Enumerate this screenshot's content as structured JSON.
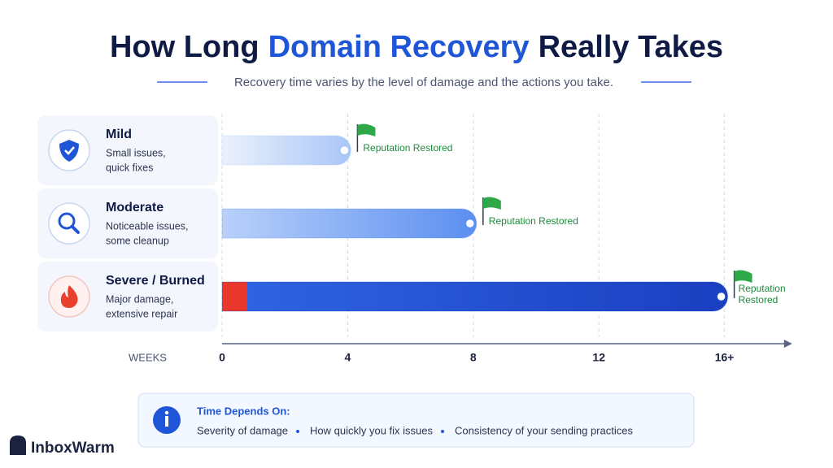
{
  "chart_data": {
    "type": "bar",
    "orientation": "horizontal",
    "title_parts": [
      "How Long",
      "Domain Recovery",
      "Really Takes"
    ],
    "subtitle": "Recovery time varies by the level of damage and the actions you take.",
    "categories": [
      "Mild",
      "Moderate",
      "Severe / Burned"
    ],
    "descriptions": [
      [
        "Small issues,",
        "quick fixes"
      ],
      [
        "Noticeable issues,",
        "some cleanup"
      ],
      [
        "Major damage,",
        "extensive repair"
      ]
    ],
    "values": [
      4,
      8,
      16
    ],
    "colors": [
      "#a9c6f7",
      "#5b8ff0",
      "#1a45c9"
    ],
    "annotations": [
      [
        "Reputation Restored"
      ],
      [
        "Reputation Restored"
      ],
      [
        "Reputation",
        "Restored"
      ]
    ],
    "xlabel": "WEEKS",
    "xlim": [
      0,
      18
    ],
    "xticks": [
      0,
      4,
      8,
      12,
      {
        "value": 16,
        "label": "16+"
      }
    ],
    "grid": true
  },
  "info_box": {
    "heading": "Time Depends On:",
    "items": [
      "Severity of damage",
      "How quickly you fix issues",
      "Consistency of your sending practices"
    ]
  },
  "brand": "InboxWarm"
}
